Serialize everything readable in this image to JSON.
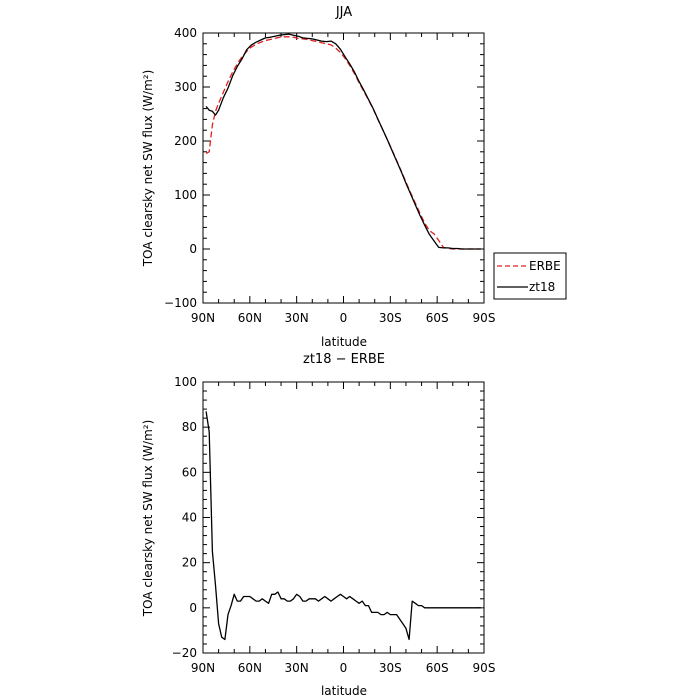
{
  "chart_data": [
    {
      "type": "line",
      "title": "JJA",
      "xlabel": "latitude",
      "ylabel": "TOA clearsky net SW flux (W/m²)",
      "xlim": [
        90,
        -90
      ],
      "ylim": [
        -100,
        400
      ],
      "xticks": [
        90,
        60,
        30,
        0,
        -30,
        -60,
        -90
      ],
      "xtick_labels": [
        "90N",
        "60N",
        "30N",
        "0",
        "30S",
        "60S",
        "90S"
      ],
      "yticks": [
        -100,
        0,
        100,
        200,
        300,
        400
      ],
      "ytick_labels": [
        "−100",
        "0",
        "100",
        "200",
        "300",
        "400"
      ],
      "legend_position": "right-lower",
      "series": [
        {
          "name": "ERBE",
          "color": "#e02020",
          "style": "dashed",
          "x": [
            88,
            86,
            84,
            82,
            80,
            77,
            74,
            71,
            68,
            65,
            62,
            59,
            56,
            53,
            50,
            47,
            44,
            41,
            38,
            35,
            32,
            29,
            26,
            23,
            20,
            17,
            14,
            11,
            8,
            5,
            2,
            -1,
            -4,
            -7,
            -10,
            -13,
            -16,
            -19,
            -22,
            -25,
            -28,
            -31,
            -34,
            -37,
            -40,
            -43,
            -46,
            -49,
            -52,
            -55,
            -58,
            -61,
            -64,
            -67,
            -70,
            -73,
            -76,
            -79,
            -82,
            -85,
            -88
          ],
          "y": [
            177,
            180,
            230,
            255,
            270,
            290,
            310,
            328,
            343,
            356,
            366,
            374,
            379,
            383,
            386,
            388,
            390,
            392,
            393,
            393,
            392,
            390,
            389,
            388,
            386,
            384,
            382,
            380,
            378,
            372,
            364,
            353,
            340,
            325,
            308,
            292,
            276,
            259,
            240,
            222,
            203,
            184,
            164,
            144,
            124,
            104,
            85,
            66,
            48,
            34,
            28,
            16,
            3,
            1,
            0,
            0,
            0,
            0,
            0,
            0,
            0
          ]
        },
        {
          "name": "zt18",
          "color": "#000000",
          "style": "solid",
          "x": [
            88,
            86,
            84,
            82,
            80,
            77,
            74,
            71,
            68,
            65,
            62,
            59,
            56,
            53,
            50,
            47,
            44,
            41,
            38,
            35,
            32,
            29,
            26,
            23,
            20,
            17,
            14,
            11,
            8,
            5,
            2,
            -1,
            -4,
            -7,
            -10,
            -13,
            -16,
            -19,
            -22,
            -25,
            -28,
            -31,
            -34,
            -37,
            -40,
            -43,
            -46,
            -49,
            -52,
            -55,
            -58,
            -61,
            -64,
            -67,
            -70,
            -73,
            -76,
            -79,
            -82,
            -85,
            -88
          ],
          "y": [
            264,
            257,
            255,
            248,
            257,
            280,
            298,
            321,
            338,
            352,
            369,
            378,
            383,
            387,
            391,
            392,
            394,
            396,
            397,
            398,
            396,
            394,
            391,
            390,
            389,
            387,
            385,
            384,
            385,
            380,
            370,
            356,
            343,
            328,
            310,
            294,
            277,
            260,
            241,
            222,
            203,
            183,
            163,
            143,
            122,
            102,
            82,
            62,
            44,
            27,
            15,
            3,
            2,
            2,
            1,
            1,
            0,
            0,
            0,
            0,
            0
          ]
        }
      ]
    },
    {
      "type": "line",
      "title": "zt18 − ERBE",
      "xlabel": "latitude",
      "ylabel": "TOA clearsky net SW flux (W/m²)",
      "xlim": [
        90,
        -90
      ],
      "ylim": [
        -20,
        100
      ],
      "xticks": [
        90,
        60,
        30,
        0,
        -30,
        -60,
        -90
      ],
      "xtick_labels": [
        "90N",
        "60N",
        "30N",
        "0",
        "30S",
        "60S",
        "90S"
      ],
      "yticks": [
        -20,
        0,
        20,
        40,
        60,
        80,
        100
      ],
      "ytick_labels": [
        "−20",
        "0",
        "20",
        "40",
        "60",
        "80",
        "100"
      ],
      "series": [
        {
          "color": "#000000",
          "style": "solid",
          "x": [
            88,
            86,
            84,
            82,
            80,
            78,
            76,
            74,
            72,
            70,
            68,
            66,
            64,
            62,
            60,
            58,
            56,
            54,
            52,
            50,
            48,
            46,
            44,
            42,
            40,
            38,
            36,
            34,
            32,
            30,
            28,
            26,
            24,
            22,
            20,
            18,
            16,
            14,
            12,
            10,
            8,
            6,
            4,
            2,
            0,
            -2,
            -4,
            -6,
            -8,
            -10,
            -12,
            -14,
            -16,
            -18,
            -20,
            -22,
            -24,
            -26,
            -28,
            -30,
            -32,
            -34,
            -36,
            -38,
            -40,
            -42,
            -44,
            -46,
            -48,
            -50,
            -52,
            -54,
            -56,
            -58,
            -60,
            -62,
            -63,
            -64,
            -66,
            -68,
            -70,
            -72,
            -74,
            -76,
            -78,
            -80,
            -82,
            -84,
            -86,
            -88
          ],
          "y": [
            87,
            78,
            25,
            10,
            -7,
            -13,
            -14,
            -3,
            1,
            6,
            3,
            3,
            5,
            5,
            5,
            4,
            3,
            3,
            4,
            3,
            2,
            6,
            6,
            7,
            4,
            4,
            3,
            3,
            4,
            6,
            5,
            3,
            3,
            4,
            4,
            4,
            3,
            4,
            5,
            4,
            3,
            4,
            5,
            6,
            5,
            4,
            5,
            4,
            3,
            2,
            3,
            1,
            1,
            -2,
            -2,
            -2,
            -3,
            -3,
            -2,
            -3,
            -3,
            -3,
            -5,
            -7,
            -9,
            -14,
            3,
            2,
            1,
            1,
            0,
            0,
            0,
            0,
            0,
            0,
            0,
            0,
            0,
            0,
            0,
            0,
            0,
            0,
            0,
            0,
            0,
            0,
            0,
            0
          ]
        }
      ]
    }
  ]
}
